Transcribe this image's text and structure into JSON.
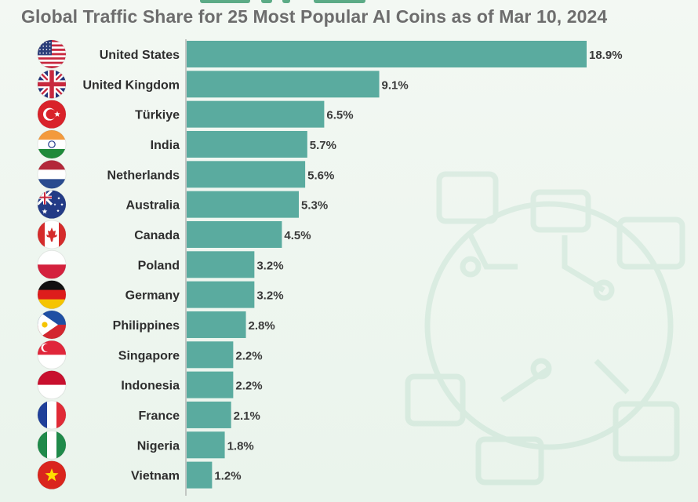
{
  "chart_data": {
    "type": "bar",
    "orientation": "horizontal",
    "title": "Global Traffic Share for 25 Most Popular AI Coins as of Mar 10, 2024",
    "categories": [
      "United States",
      "United Kingdom",
      "Türkiye",
      "India",
      "Netherlands",
      "Australia",
      "Canada",
      "Poland",
      "Germany",
      "Philippines",
      "Singapore",
      "Indonesia",
      "France",
      "Nigeria",
      "Vietnam"
    ],
    "values": [
      18.9,
      9.1,
      6.5,
      5.7,
      5.6,
      5.3,
      4.5,
      3.2,
      3.2,
      2.8,
      2.2,
      2.2,
      2.1,
      1.8,
      1.2
    ],
    "value_labels": [
      "18.9%",
      "9.1%",
      "6.5%",
      "5.7%",
      "5.6%",
      "5.3%",
      "4.5%",
      "3.2%",
      "3.2%",
      "2.8%",
      "2.2%",
      "2.2%",
      "2.1%",
      "1.8%",
      "1.2%"
    ],
    "flag_icons": [
      "us-flag-icon",
      "uk-flag-icon",
      "turkiye-flag-icon",
      "india-flag-icon",
      "netherlands-flag-icon",
      "australia-flag-icon",
      "canada-flag-icon",
      "poland-flag-icon",
      "germany-flag-icon",
      "philippines-flag-icon",
      "singapore-flag-icon",
      "indonesia-flag-icon",
      "france-flag-icon",
      "nigeria-flag-icon",
      "vietnam-flag-icon"
    ],
    "xlim": [
      0,
      18.9
    ],
    "grid": false,
    "legend": "none",
    "colors": {
      "bar": "#5aab9f",
      "axis": "#9a9a9a",
      "title": "#6d6d6d"
    }
  }
}
